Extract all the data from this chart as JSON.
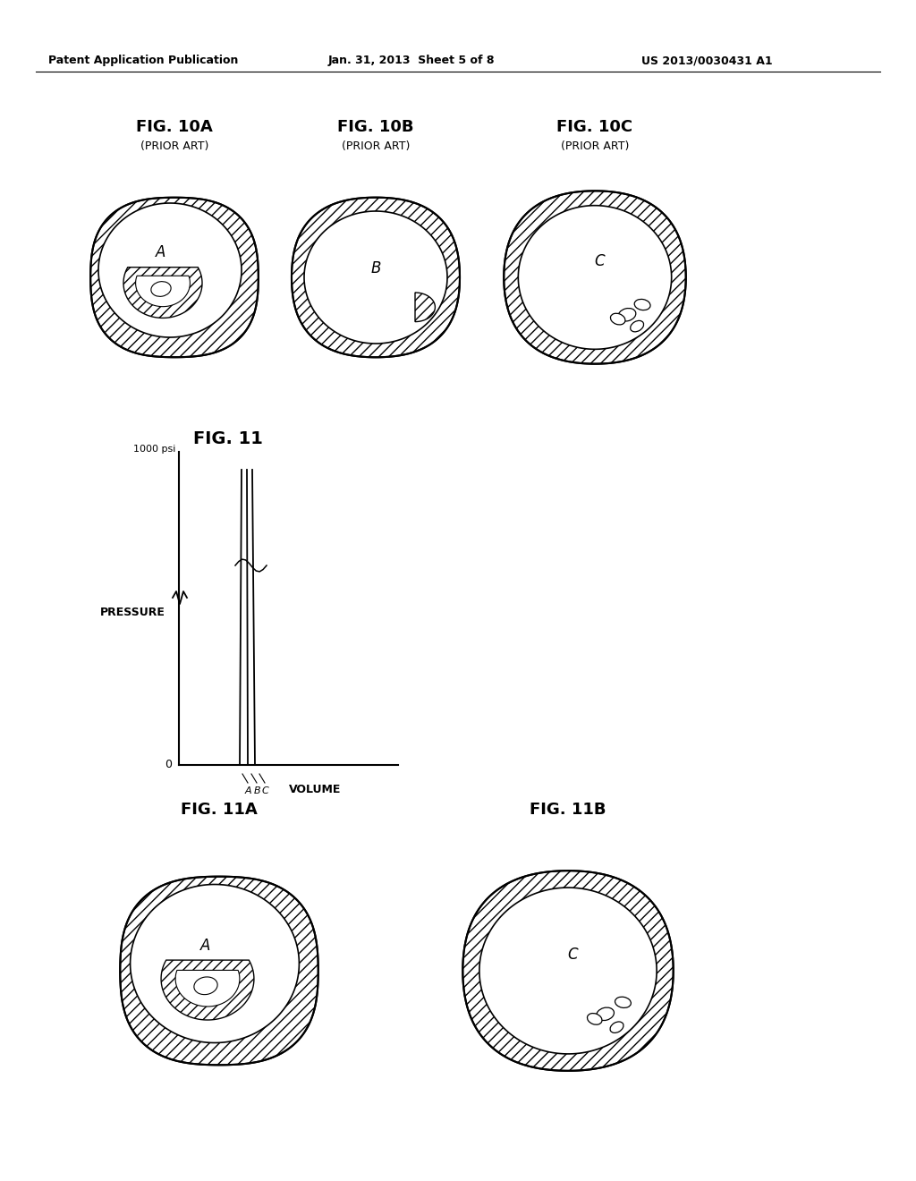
{
  "background_color": "#ffffff",
  "header_left": "Patent Application Publication",
  "header_center": "Jan. 31, 2013  Sheet 5 of 8",
  "header_right": "US 2013/0030431 A1",
  "fig10A_title": "FIG. 10A",
  "fig10A_sub": "(PRIOR ART)",
  "fig10B_title": "FIG. 10B",
  "fig10B_sub": "(PRIOR ART)",
  "fig10C_title": "FIG. 10C",
  "fig10C_sub": "(PRIOR ART)",
  "fig11_title": "FIG. 11",
  "fig11A_title": "FIG. 11A",
  "fig11B_title": "FIG. 11B",
  "label_A": "A",
  "label_B": "B",
  "label_C": "C",
  "pressure_label": "PRESSURE",
  "volume_label": "VOLUME",
  "psi_label": "1000 psi",
  "zero_label": "0"
}
